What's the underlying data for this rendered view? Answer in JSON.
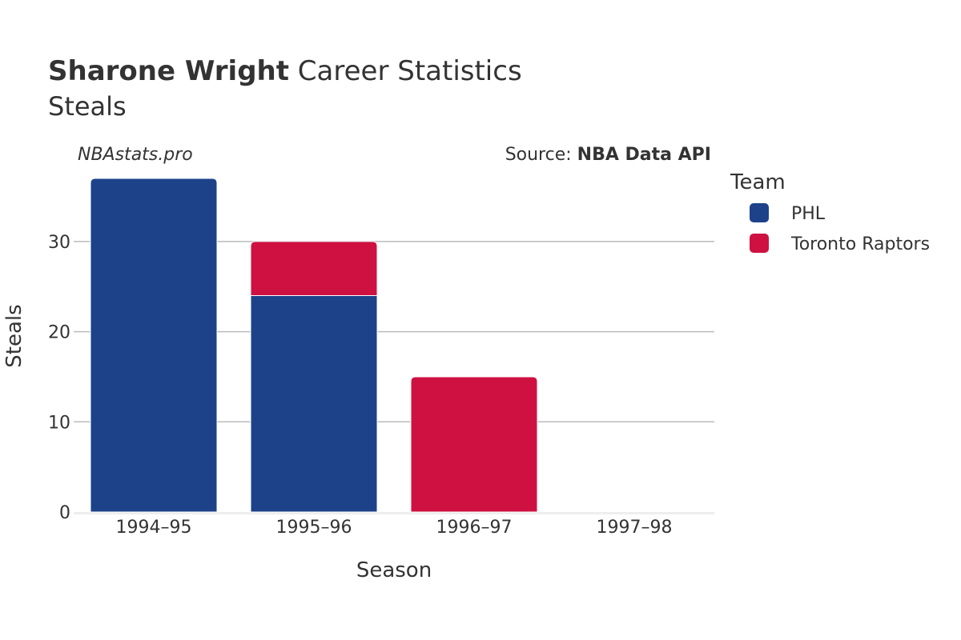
{
  "header": {
    "title_bold": "Sharone Wright",
    "title_rest": " Career Statistics",
    "subtitle": "Steals",
    "watermark": "NBAstats.pro",
    "source_prefix": "Source: ",
    "source_name": "NBA Data API"
  },
  "legend": {
    "title": "Team"
  },
  "colors": {
    "PHL": "#1d428a",
    "Toronto Raptors": "#ce1141",
    "grid": "#bbbbbb",
    "baseline": "#eeeeee"
  },
  "chart_data": {
    "type": "bar",
    "stacked": true,
    "title": "Sharone Wright Career Statistics",
    "subtitle": "Steals",
    "xlabel": "Season",
    "ylabel": "Steals",
    "categories": [
      "1994–95",
      "1995–96",
      "1996–97",
      "1997–98"
    ],
    "series": [
      {
        "name": "PHL",
        "values": [
          37,
          24,
          0,
          0
        ]
      },
      {
        "name": "Toronto Raptors",
        "values": [
          0,
          6,
          15,
          0
        ]
      }
    ],
    "ylim": [
      0,
      37
    ],
    "yticks": [
      0,
      10,
      20,
      30
    ],
    "grid": true,
    "legend_position": "right"
  }
}
